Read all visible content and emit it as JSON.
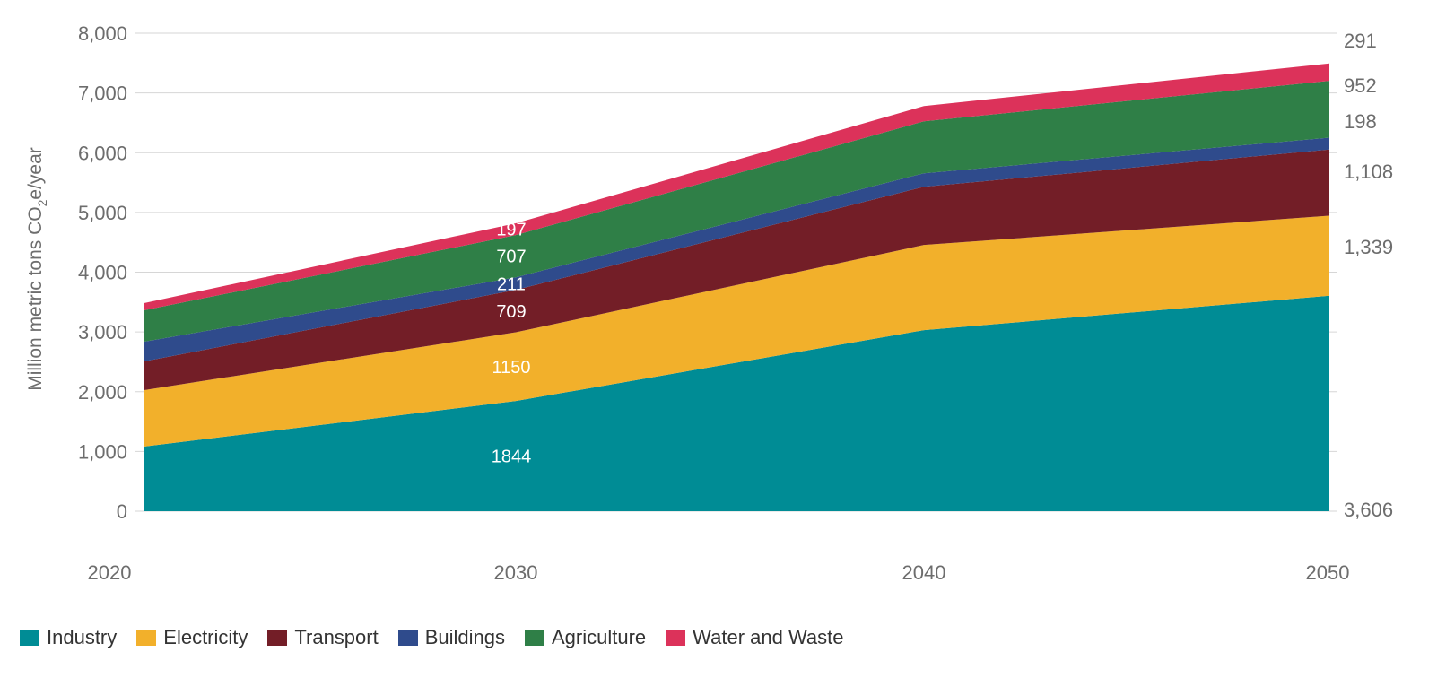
{
  "chart_data": {
    "type": "area",
    "stacked": true,
    "title": "",
    "xlabel": "",
    "ylabel": "Million metric tons CO2e/year",
    "ylabel_parts": {
      "pre": "Million metric tons CO",
      "sub": "2",
      "post": "e/year"
    },
    "x": [
      2020,
      2030,
      2040,
      2050
    ],
    "x_tick_labels": [
      "2020",
      "2030",
      "2040",
      "2050"
    ],
    "ylim": [
      0,
      8000
    ],
    "y_ticks": [
      0,
      1000,
      2000,
      3000,
      4000,
      5000,
      6000,
      7000,
      8000
    ],
    "y_tick_labels": [
      "0",
      "1,000",
      "2,000",
      "3,000",
      "4,000",
      "5,000",
      "6,000",
      "7,000",
      "8,000"
    ],
    "grid": true,
    "legend_placement": "bottom",
    "series": [
      {
        "name": "Industry",
        "color": "#008c95",
        "values": [
          1080,
          1844,
          3030,
          3606
        ],
        "label_2030": "1844",
        "label_2050": "3,606"
      },
      {
        "name": "Electricity",
        "color": "#f2b02b",
        "values": [
          945,
          1150,
          1425,
          1339
        ],
        "label_2030": "1150",
        "label_2050": "1,339"
      },
      {
        "name": "Transport",
        "color": "#731e27",
        "values": [
          480,
          709,
          975,
          1108
        ],
        "label_2030": "709",
        "label_2050": "1,108"
      },
      {
        "name": "Buildings",
        "color": "#2f4b8c",
        "values": [
          330,
          211,
          225,
          198
        ],
        "label_2030": "211",
        "label_2050": "198"
      },
      {
        "name": "Agriculture",
        "color": "#2f7f47",
        "values": [
          525,
          707,
          870,
          952
        ],
        "label_2030": "707",
        "label_2050": "952"
      },
      {
        "name": "Water and Waste",
        "color": "#dc325a",
        "values": [
          120,
          197,
          255,
          291
        ],
        "label_2030": "197",
        "label_2050": "291"
      }
    ]
  }
}
